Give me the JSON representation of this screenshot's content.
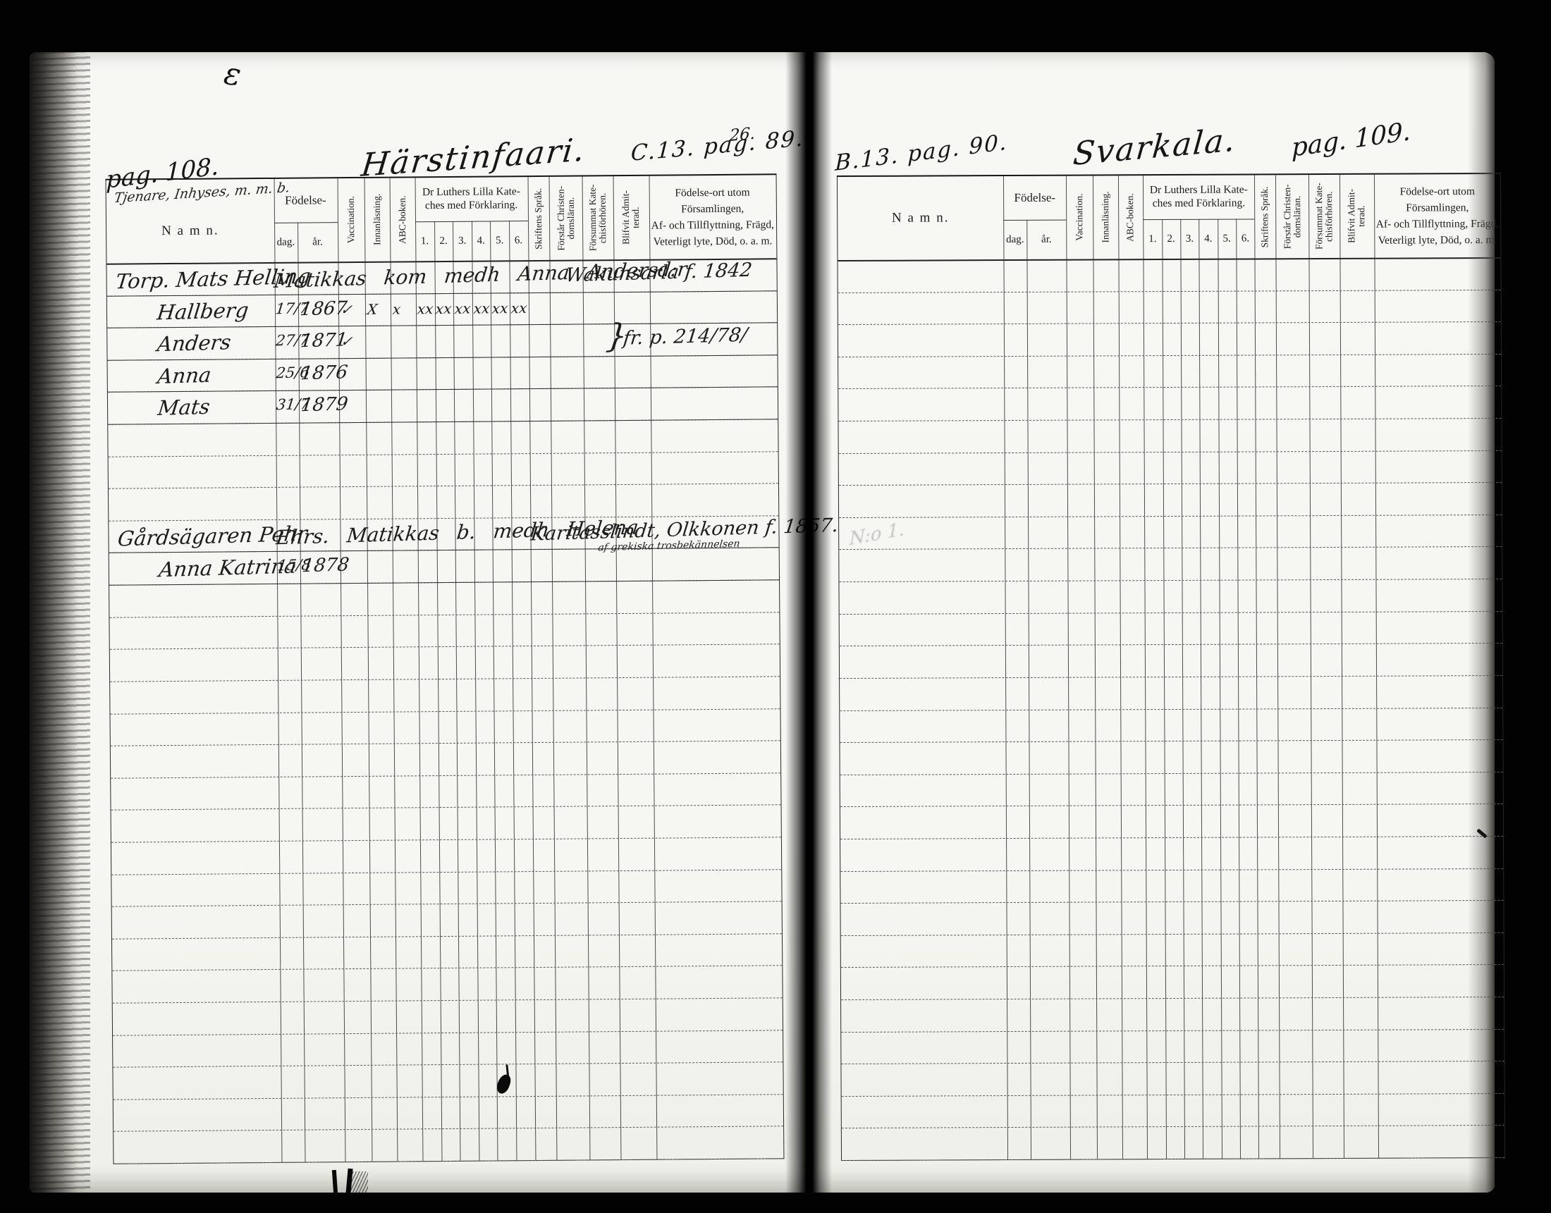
{
  "book": {
    "left_page": {
      "page_number_script": "pag. 108.",
      "title_script": "Härstinfaari.",
      "ref_above": "26.",
      "ref_script": "C.13. pag. 89.",
      "namn_annotation_script": "Tjenare, Inhyses, m. m. b.",
      "entries": [
        {
          "row": 1,
          "name": "Torp. Mats Helling",
          "span": "Matikkas kom medh Anna Andersd:r",
          "note": "Wakunsarla f. 1842"
        },
        {
          "row": 2,
          "name": "Hallberg",
          "dag": "17/7",
          "ar": "1867",
          "marks": [
            "✓",
            "X",
            "x",
            "xx",
            "xx",
            "xx",
            "xx",
            "xx",
            "xx"
          ]
        },
        {
          "row": 3,
          "name": "Anders",
          "dag": "27/7",
          "ar": "1871",
          "marks": [
            "✓"
          ],
          "note_prefix": "}",
          "note": "fr. p. 214/78/"
        },
        {
          "row": 4,
          "name": "Anna",
          "dag": "25/6",
          "ar": "1876"
        },
        {
          "row": 5,
          "name": "Mats",
          "dag": "31/7",
          "ar": "1879"
        },
        {
          "row": 9,
          "name": "Gårdsägaren Pehr",
          "span": "Ehrs. Matikkas b. medh Helena",
          "note": "Karitasslindt, Olkkonen f. 1857.",
          "note_sub": "af grekiska trosbekännelsen"
        },
        {
          "row": 10,
          "name": "Anna Katrina",
          "dag": "15/8",
          "ar": "1878"
        }
      ]
    },
    "right_page": {
      "page_number_script": "pag. 109.",
      "title_script": "Svarkala.",
      "ref_script": "B.13. pag. 90.",
      "faint_mark_script": "N:o 1."
    },
    "columns": {
      "namn": "N a m n.",
      "fodelse": "Födelse-",
      "dag": "dag.",
      "ar": "år.",
      "vaccination": "Vaccination.",
      "innanlasning": "Innanläsning.",
      "abc_boken": "ABC-boken.",
      "katekes_line1": "Dr Luthers Lilla Kate-",
      "katekes_line2": "ches med Förklaring.",
      "k": [
        "1.",
        "2.",
        "3.",
        "4.",
        "5.",
        "6."
      ],
      "skriftens_sprak": "Skriftens Språk.",
      "forstar": "Förstår Christen- domsläran.",
      "forsummat": "Försummat Kate- chisförhören.",
      "blifvit": "Blifvit Admit- terad.",
      "notes_line1": "Födelse-ort utom Församlingen,",
      "notes_line2": "Af- och Tillflyttning, Frägd,",
      "notes_line3": "Veterligt lyte, Död, o. a. m."
    }
  }
}
